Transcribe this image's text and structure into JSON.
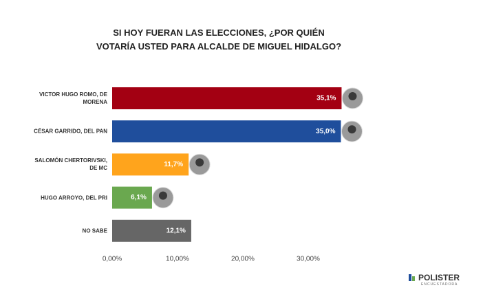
{
  "chart_data": {
    "type": "bar",
    "orientation": "horizontal",
    "title": "SI HOY FUERAN LAS ELECCIONES, ¿POR QUIÉN VOTARÍA USTED PARA ALCALDE DE MIGUEL HIDALGO?",
    "categories": [
      "VICTOR HUGO ROMO, DE MORENA",
      "CÉSAR GARRIDO, DEL PAN",
      "SALOMÓN CHERTORIVSKI, DE MC",
      "HUGO ARROYO, DEL PRI",
      "NO SABE"
    ],
    "values": [
      35.1,
      35.0,
      11.7,
      6.1,
      12.1
    ],
    "value_labels": [
      "35,1%",
      "35,0%",
      "11,7%",
      "6,1%",
      "12,1%"
    ],
    "colors": [
      "#a30012",
      "#1f4e9c",
      "#ffa41c",
      "#6aa84f",
      "#666666"
    ],
    "xlim": [
      0,
      40
    ],
    "xticks": [
      {
        "value": 0,
        "label": "0,00%"
      },
      {
        "value": 10,
        "label": "10,00%"
      },
      {
        "value": 20,
        "label": "20,00%"
      },
      {
        "value": 30,
        "label": "30,00%"
      }
    ],
    "grid": false
  },
  "logo": {
    "name": "POLISTER",
    "tagline": "ENCUESTADORA"
  }
}
